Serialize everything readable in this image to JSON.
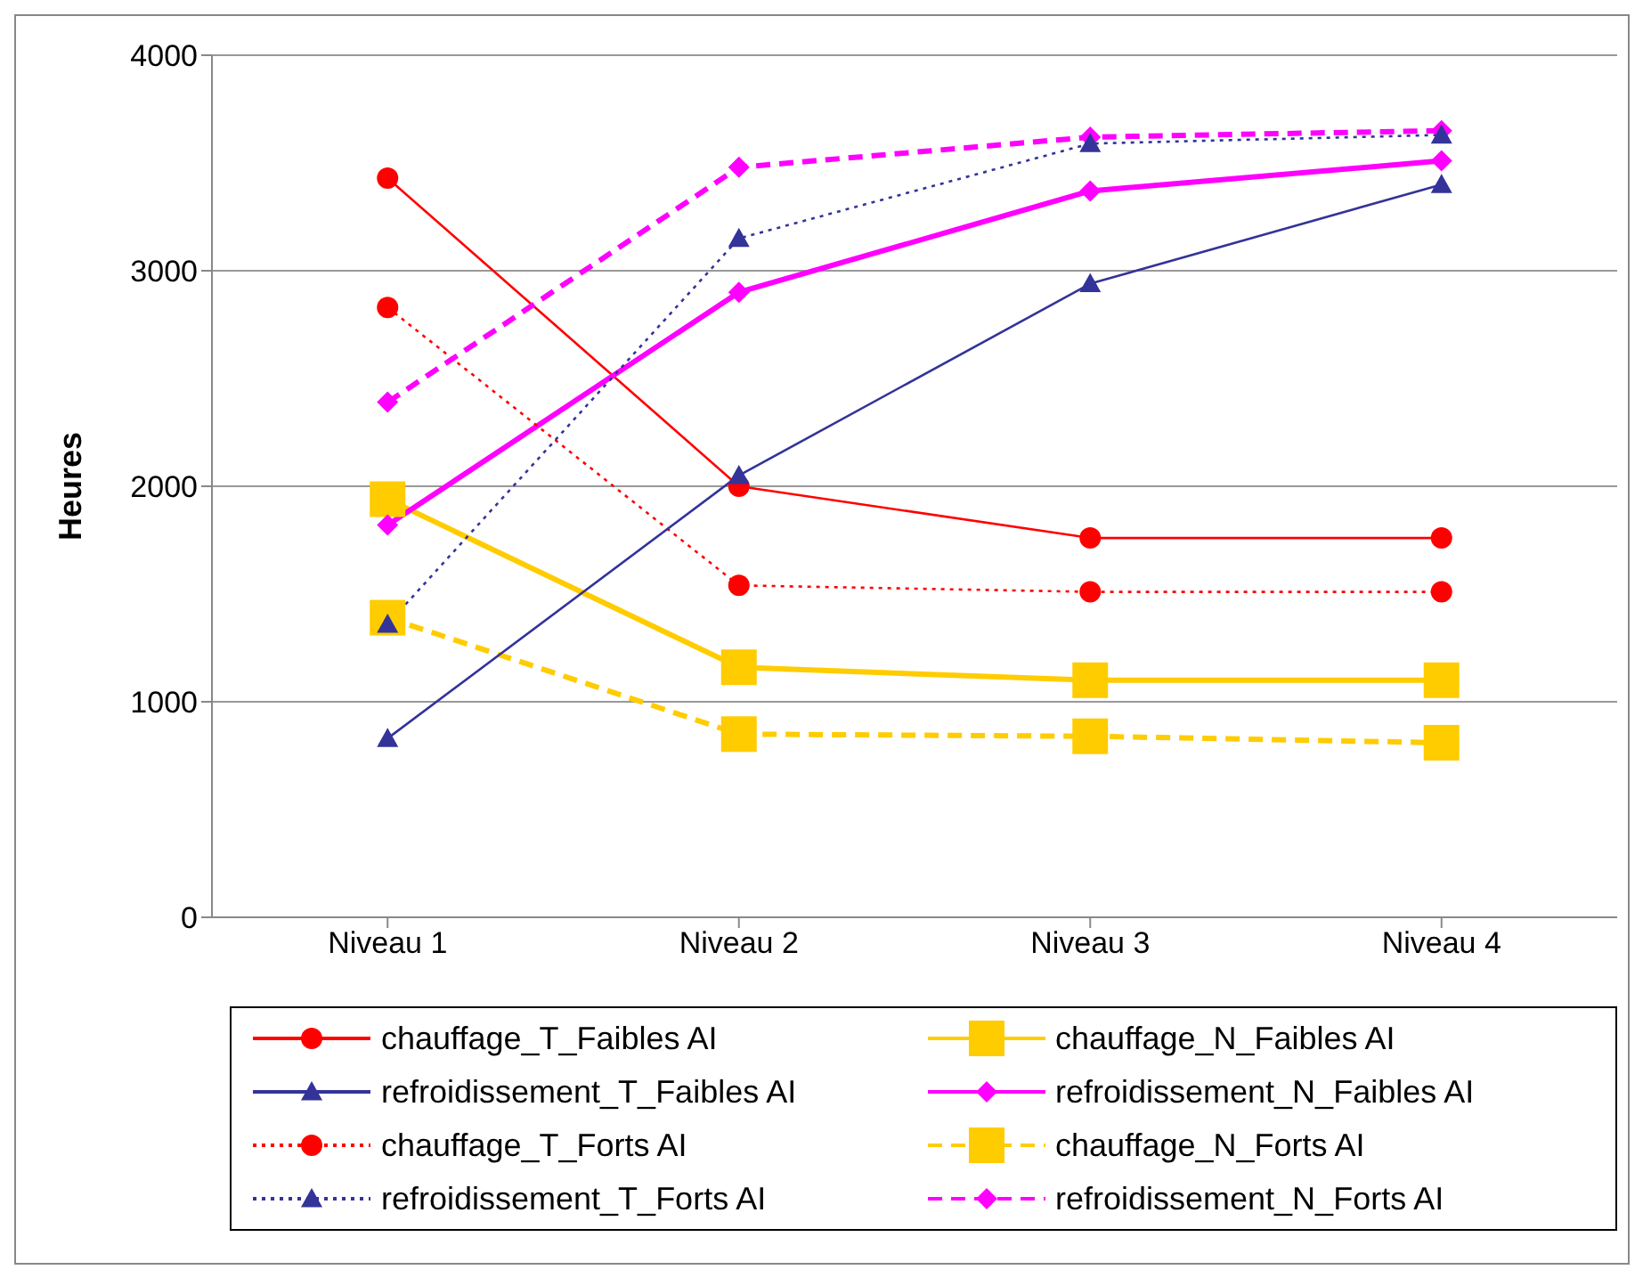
{
  "chart_data": {
    "type": "line",
    "ylabel": "Heures",
    "categories": [
      "Niveau 1",
      "Niveau 2",
      "Niveau 3",
      "Niveau 4"
    ],
    "ylim": [
      0,
      4000
    ],
    "yticks": [
      0,
      1000,
      2000,
      3000,
      4000
    ],
    "grid": "y",
    "legend": "bottom",
    "series": [
      {
        "name": "chauffage_T_Faibles AI",
        "color": "#ff0000",
        "marker": "circle",
        "line_style": "solid",
        "values": [
          3430,
          2000,
          1760,
          1760
        ]
      },
      {
        "name": "chauffage_N_Faibles AI",
        "color": "#ffcc00",
        "marker": "square",
        "line_style": "solid",
        "values": [
          1940,
          1160,
          1100,
          1100
        ]
      },
      {
        "name": "refroidissement_T_Faibles AI",
        "color": "#333399",
        "marker": "triangle",
        "line_style": "solid",
        "values": [
          830,
          2050,
          2940,
          3400
        ]
      },
      {
        "name": "refroidissement_N_Faibles AI",
        "color": "#ff00ff",
        "marker": "diamond",
        "line_style": "solid",
        "values": [
          1820,
          2900,
          3370,
          3510
        ]
      },
      {
        "name": "chauffage_T_Forts AI",
        "color": "#ff0000",
        "marker": "circle",
        "line_style": "dotted",
        "values": [
          2830,
          1540,
          1510,
          1510
        ]
      },
      {
        "name": "chauffage_N_Forts AI",
        "color": "#ffcc00",
        "marker": "square",
        "line_style": "dashed",
        "values": [
          1390,
          850,
          840,
          810
        ]
      },
      {
        "name": "refroidissement_T_Forts AI",
        "color": "#333399",
        "marker": "triangle",
        "line_style": "dotted",
        "values": [
          1360,
          3150,
          3590,
          3630
        ]
      },
      {
        "name": "refroidissement_N_Forts AI",
        "color": "#ff00ff",
        "marker": "diamond",
        "line_style": "dashed",
        "values": [
          2390,
          3480,
          3620,
          3650
        ]
      }
    ]
  }
}
